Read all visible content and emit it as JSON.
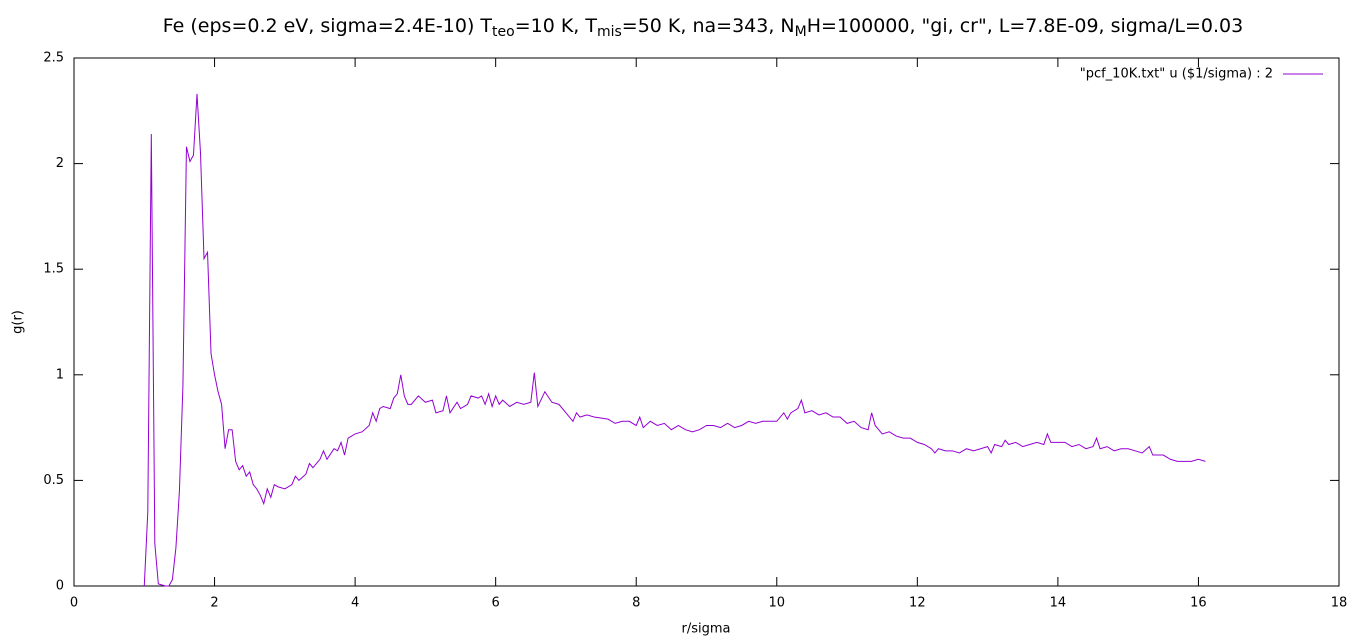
{
  "chart_data": {
    "type": "line",
    "title": [
      "Fe (eps=0.2 eV, sigma=2.4E-10) T",
      "teo",
      "=10 K, T",
      "mis",
      "=50 K, na=343, N",
      "M",
      "H=100000, \"gi, cr\", L=7.8E-09, sigma/L=0.03"
    ],
    "x_label": "r/sigma",
    "y_label": "g(r)",
    "xlim": [
      0,
      18
    ],
    "xticks": [
      0,
      2,
      4,
      6,
      8,
      10,
      12,
      14,
      16,
      18
    ],
    "ylim": [
      0,
      2.5
    ],
    "yticks": [
      0,
      0.5,
      1,
      1.5,
      2,
      2.5
    ],
    "legend": "top-right",
    "x": [
      1.0,
      1.05,
      1.1,
      1.15,
      1.2,
      1.3,
      1.35,
      1.4,
      1.45,
      1.5,
      1.55,
      1.6,
      1.65,
      1.7,
      1.75,
      1.8,
      1.85,
      1.9,
      1.95,
      2.0,
      2.05,
      2.1,
      2.15,
      2.2,
      2.25,
      2.3,
      2.35,
      2.4,
      2.45,
      2.5,
      2.55,
      2.6,
      2.65,
      2.7,
      2.75,
      2.8,
      2.85,
      2.9,
      3.0,
      3.1,
      3.15,
      3.2,
      3.3,
      3.35,
      3.4,
      3.5,
      3.55,
      3.6,
      3.7,
      3.75,
      3.8,
      3.85,
      3.9,
      4.0,
      4.1,
      4.2,
      4.25,
      4.3,
      4.35,
      4.4,
      4.5,
      4.55,
      4.6,
      4.65,
      4.7,
      4.75,
      4.8,
      4.9,
      5.0,
      5.1,
      5.15,
      5.25,
      5.3,
      5.35,
      5.45,
      5.5,
      5.6,
      5.65,
      5.75,
      5.8,
      5.85,
      5.9,
      5.95,
      6.0,
      6.05,
      6.1,
      6.2,
      6.3,
      6.4,
      6.5,
      6.55,
      6.6,
      6.7,
      6.8,
      6.9,
      7.0,
      7.1,
      7.15,
      7.2,
      7.3,
      7.4,
      7.6,
      7.7,
      7.8,
      7.9,
      8.0,
      8.05,
      8.1,
      8.2,
      8.3,
      8.4,
      8.5,
      8.6,
      8.7,
      8.8,
      8.9,
      9.0,
      9.1,
      9.2,
      9.3,
      9.4,
      9.5,
      9.6,
      9.7,
      9.8,
      9.9,
      10.0,
      10.1,
      10.15,
      10.2,
      10.3,
      10.35,
      10.4,
      10.5,
      10.6,
      10.7,
      10.8,
      10.9,
      11.0,
      11.1,
      11.2,
      11.3,
      11.35,
      11.4,
      11.5,
      11.6,
      11.7,
      11.8,
      11.9,
      12.0,
      12.1,
      12.2,
      12.25,
      12.3,
      12.4,
      12.5,
      12.6,
      12.7,
      12.8,
      12.9,
      13.0,
      13.05,
      13.1,
      13.2,
      13.25,
      13.3,
      13.4,
      13.5,
      13.6,
      13.7,
      13.8,
      13.85,
      13.9,
      14.0,
      14.1,
      14.2,
      14.3,
      14.4,
      14.5,
      14.55,
      14.6,
      14.7,
      14.8,
      14.9,
      15.0,
      15.1,
      15.2,
      15.3,
      15.35,
      15.4,
      15.5,
      15.6,
      15.7,
      15.8,
      15.9,
      16.0,
      16.1
    ],
    "series": [
      {
        "name": "\"pcf_10K.txt\" u ($1/sigma) : 2",
        "color": "#9400d3",
        "values": [
          0,
          0.35,
          2.14,
          0.2,
          0.01,
          0.0,
          0.0,
          0.03,
          0.18,
          0.45,
          0.95,
          2.08,
          2.01,
          2.04,
          2.33,
          2.05,
          1.55,
          1.58,
          1.1,
          1.0,
          0.92,
          0.86,
          0.65,
          0.74,
          0.74,
          0.59,
          0.55,
          0.57,
          0.52,
          0.54,
          0.48,
          0.46,
          0.43,
          0.39,
          0.46,
          0.42,
          0.48,
          0.47,
          0.46,
          0.48,
          0.52,
          0.5,
          0.53,
          0.58,
          0.56,
          0.6,
          0.64,
          0.6,
          0.65,
          0.64,
          0.68,
          0.62,
          0.7,
          0.72,
          0.73,
          0.76,
          0.82,
          0.78,
          0.84,
          0.85,
          0.84,
          0.89,
          0.91,
          1.0,
          0.9,
          0.86,
          0.86,
          0.9,
          0.87,
          0.88,
          0.82,
          0.83,
          0.9,
          0.82,
          0.87,
          0.84,
          0.86,
          0.9,
          0.89,
          0.9,
          0.86,
          0.91,
          0.85,
          0.9,
          0.86,
          0.88,
          0.85,
          0.87,
          0.86,
          0.87,
          1.01,
          0.85,
          0.92,
          0.87,
          0.86,
          0.82,
          0.78,
          0.82,
          0.8,
          0.81,
          0.8,
          0.79,
          0.77,
          0.78,
          0.78,
          0.76,
          0.8,
          0.75,
          0.78,
          0.76,
          0.77,
          0.74,
          0.76,
          0.74,
          0.73,
          0.74,
          0.76,
          0.76,
          0.75,
          0.77,
          0.75,
          0.76,
          0.78,
          0.77,
          0.78,
          0.78,
          0.78,
          0.82,
          0.79,
          0.82,
          0.84,
          0.88,
          0.82,
          0.83,
          0.81,
          0.82,
          0.8,
          0.8,
          0.77,
          0.78,
          0.75,
          0.74,
          0.82,
          0.76,
          0.72,
          0.73,
          0.71,
          0.7,
          0.7,
          0.68,
          0.67,
          0.65,
          0.63,
          0.65,
          0.64,
          0.64,
          0.63,
          0.65,
          0.64,
          0.65,
          0.66,
          0.63,
          0.67,
          0.66,
          0.69,
          0.67,
          0.68,
          0.66,
          0.67,
          0.68,
          0.67,
          0.72,
          0.68,
          0.68,
          0.68,
          0.66,
          0.67,
          0.65,
          0.66,
          0.7,
          0.65,
          0.66,
          0.64,
          0.65,
          0.65,
          0.64,
          0.63,
          0.66,
          0.62,
          0.62,
          0.62,
          0.6,
          0.59,
          0.59,
          0.59,
          0.6,
          0.59
        ]
      }
    ]
  }
}
